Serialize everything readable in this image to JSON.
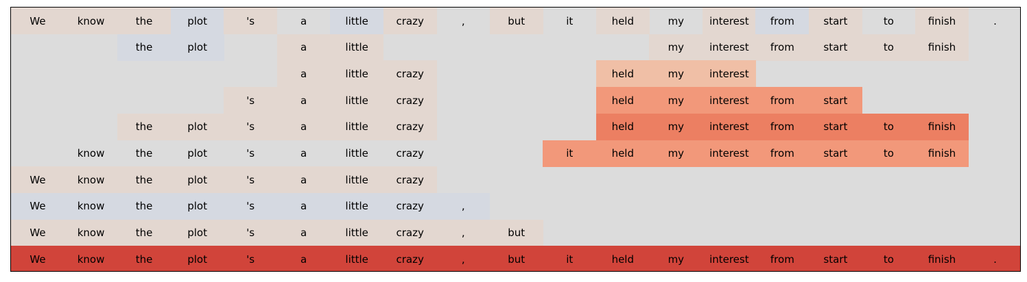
{
  "panel_label": "1",
  "colors": {
    "background": "#dcdcdc",
    "scale": [
      "#d5d9e1",
      "#e3d7d0",
      "#f0bfa6",
      "#f2987a",
      "#ec7f62",
      "#d1443a"
    ]
  },
  "tokens": [
    "We",
    "know",
    "the",
    "plot",
    "'s",
    "a",
    "little",
    "crazy",
    ",",
    "but",
    "it",
    "held",
    "my",
    "interest",
    "from",
    "start",
    "to",
    "finish",
    "."
  ],
  "rows": [
    {
      "name": "full-sentence",
      "show": [
        1,
        1,
        1,
        1,
        1,
        1,
        1,
        1,
        1,
        1,
        1,
        1,
        1,
        1,
        1,
        1,
        1,
        1,
        1
      ],
      "color": [
        1,
        1,
        1,
        0,
        1,
        -1,
        0,
        1,
        -1,
        1,
        -1,
        1,
        -1,
        1,
        0,
        1,
        -1,
        1,
        -1
      ]
    },
    {
      "name": "row-2",
      "show": [
        0,
        0,
        1,
        1,
        0,
        1,
        1,
        0,
        0,
        0,
        0,
        0,
        1,
        1,
        1,
        1,
        1,
        1,
        0
      ],
      "color": [
        -1,
        -1,
        0,
        0,
        -1,
        1,
        1,
        -1,
        -1,
        -1,
        -1,
        -1,
        1,
        1,
        1,
        1,
        1,
        1,
        -1
      ]
    },
    {
      "name": "row-3",
      "show": [
        0,
        0,
        0,
        0,
        0,
        1,
        1,
        1,
        0,
        0,
        0,
        1,
        1,
        1,
        0,
        0,
        0,
        0,
        0
      ],
      "color": [
        -1,
        -1,
        -1,
        -1,
        -1,
        1,
        1,
        1,
        -1,
        -1,
        -1,
        2,
        2,
        2,
        -1,
        -1,
        -1,
        -1,
        -1
      ]
    },
    {
      "name": "row-4",
      "show": [
        0,
        0,
        0,
        0,
        1,
        1,
        1,
        1,
        0,
        0,
        0,
        1,
        1,
        1,
        1,
        1,
        0,
        0,
        0
      ],
      "color": [
        -1,
        -1,
        -1,
        -1,
        1,
        1,
        1,
        1,
        -1,
        -1,
        -1,
        3,
        3,
        3,
        3,
        3,
        -1,
        -1,
        -1
      ]
    },
    {
      "name": "row-5",
      "show": [
        0,
        0,
        1,
        1,
        1,
        1,
        1,
        1,
        0,
        0,
        0,
        1,
        1,
        1,
        1,
        1,
        1,
        1,
        0
      ],
      "color": [
        -1,
        -1,
        1,
        1,
        1,
        1,
        1,
        1,
        -1,
        -1,
        -1,
        4,
        4,
        4,
        4,
        4,
        4,
        4,
        -1
      ]
    },
    {
      "name": "row-6",
      "show": [
        0,
        1,
        1,
        1,
        1,
        1,
        1,
        1,
        0,
        0,
        1,
        1,
        1,
        1,
        1,
        1,
        1,
        1,
        0
      ],
      "color": [
        -1,
        -1,
        -1,
        -1,
        -1,
        -1,
        -1,
        -1,
        -1,
        -1,
        3,
        3,
        3,
        3,
        3,
        3,
        3,
        3,
        -1
      ]
    },
    {
      "name": "row-7",
      "show": [
        1,
        1,
        1,
        1,
        1,
        1,
        1,
        1,
        0,
        0,
        0,
        0,
        0,
        0,
        0,
        0,
        0,
        0,
        0
      ],
      "color": [
        1,
        1,
        1,
        1,
        1,
        1,
        1,
        1,
        -1,
        -1,
        -1,
        -1,
        -1,
        -1,
        -1,
        -1,
        -1,
        -1,
        -1
      ]
    },
    {
      "name": "row-8",
      "show": [
        1,
        1,
        1,
        1,
        1,
        1,
        1,
        1,
        1,
        0,
        0,
        0,
        0,
        0,
        0,
        0,
        0,
        0,
        0
      ],
      "color": [
        0,
        0,
        0,
        0,
        0,
        0,
        0,
        0,
        0,
        -1,
        -1,
        -1,
        -1,
        -1,
        -1,
        -1,
        -1,
        -1,
        -1
      ]
    },
    {
      "name": "row-9",
      "show": [
        1,
        1,
        1,
        1,
        1,
        1,
        1,
        1,
        1,
        1,
        0,
        0,
        0,
        0,
        0,
        0,
        0,
        0,
        0
      ],
      "color": [
        1,
        1,
        1,
        1,
        1,
        1,
        1,
        1,
        1,
        1,
        -1,
        -1,
        -1,
        -1,
        -1,
        -1,
        -1,
        -1,
        -1
      ]
    },
    {
      "name": "row-10",
      "show": [
        1,
        1,
        1,
        1,
        1,
        1,
        1,
        1,
        1,
        1,
        1,
        1,
        1,
        1,
        1,
        1,
        1,
        1,
        1
      ],
      "color": [
        5,
        5,
        5,
        5,
        5,
        5,
        5,
        5,
        5,
        5,
        5,
        5,
        5,
        5,
        5,
        5,
        5,
        5,
        5
      ]
    }
  ]
}
